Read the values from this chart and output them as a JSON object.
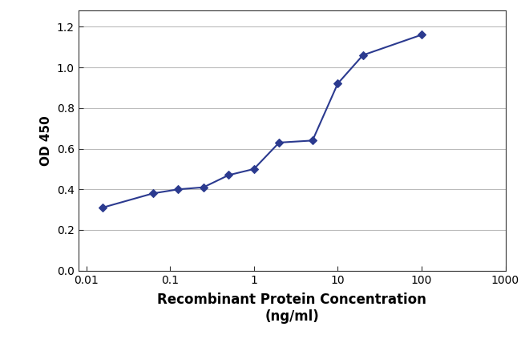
{
  "x_values": [
    0.0156,
    0.0625,
    0.125,
    0.25,
    0.5,
    1.0,
    2.0,
    5.0,
    10.0,
    20.0,
    100.0
  ],
  "y_values": [
    0.31,
    0.38,
    0.4,
    0.41,
    0.47,
    0.5,
    0.63,
    0.64,
    0.92,
    1.06,
    1.16
  ],
  "line_color": "#2b3a8f",
  "marker_color": "#2b3a8f",
  "marker": "D",
  "marker_size": 5,
  "line_width": 1.5,
  "xlabel_line1": "Recombinant Protein Concentration",
  "xlabel_line2": "(ng/ml)",
  "ylabel": "OD 450",
  "xlabel_fontsize": 12,
  "ylabel_fontsize": 11,
  "xlabel_fontweight": "bold",
  "ylabel_fontweight": "bold",
  "ylim": [
    0.0,
    1.28
  ],
  "yticks": [
    0.0,
    0.2,
    0.4,
    0.6,
    0.8,
    1.0,
    1.2
  ],
  "xlim_log": [
    0.008,
    1000
  ],
  "background_color": "#ffffff",
  "plot_bg_color": "#ffffff",
  "grid_color": "#bbbbbb",
  "tick_fontsize": 10,
  "x_tick_positions": [
    0.01,
    0.1,
    1,
    10,
    100,
    1000
  ],
  "x_tick_labels": [
    "0.01",
    "0.1",
    "1",
    "10",
    "100",
    "1000"
  ]
}
